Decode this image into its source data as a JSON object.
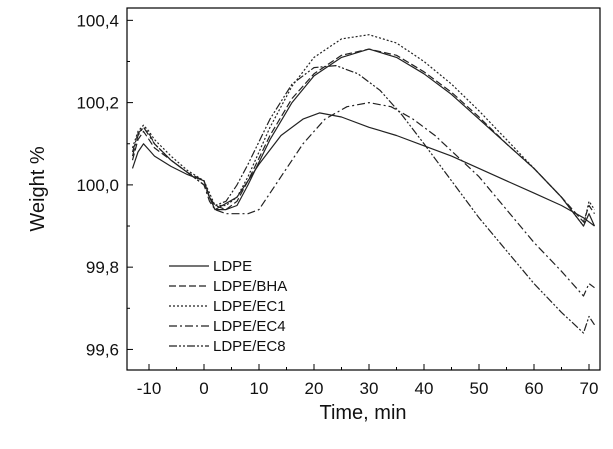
{
  "chart_data": {
    "type": "line",
    "xlabel": "Time, min",
    "ylabel": "Weight %",
    "xlim": [
      -14,
      72
    ],
    "ylim": [
      99.55,
      100.43
    ],
    "x_ticks": [
      -10,
      0,
      10,
      20,
      30,
      40,
      50,
      60,
      70
    ],
    "x_tick_labels": [
      "-10",
      "0",
      "10",
      "20",
      "30",
      "40",
      "50",
      "60",
      "70"
    ],
    "y_ticks": [
      99.6,
      99.8,
      100.0,
      100.2,
      100.4
    ],
    "y_tick_labels": [
      "99,6",
      "99,8",
      "100,0",
      "100,2",
      "100,4"
    ],
    "grid": false,
    "legend_position": "bottom-left",
    "series": [
      {
        "name": "LDPE",
        "dash": "",
        "points": [
          [
            -13,
            100.04
          ],
          [
            -12,
            100.08
          ],
          [
            -11,
            100.1
          ],
          [
            -10,
            100.085
          ],
          [
            -9,
            100.07
          ],
          [
            -6,
            100.045
          ],
          [
            -3,
            100.025
          ],
          [
            0,
            100.01
          ],
          [
            1,
            99.97
          ],
          [
            2,
            99.94
          ],
          [
            4,
            99.94
          ],
          [
            6,
            99.95
          ],
          [
            8,
            100.0
          ],
          [
            12,
            100.11
          ],
          [
            16,
            100.2
          ],
          [
            20,
            100.265
          ],
          [
            25,
            100.31
          ],
          [
            30,
            100.33
          ],
          [
            35,
            100.31
          ],
          [
            40,
            100.27
          ],
          [
            45,
            100.22
          ],
          [
            50,
            100.16
          ],
          [
            55,
            100.1
          ],
          [
            60,
            100.04
          ],
          [
            65,
            99.97
          ],
          [
            69,
            99.9
          ],
          [
            70,
            99.93
          ],
          [
            71,
            99.9
          ]
        ]
      },
      {
        "name": "LDPE/BHA",
        "dash": "7,3",
        "points": [
          [
            -13,
            100.06
          ],
          [
            -12,
            100.11
          ],
          [
            -11,
            100.13
          ],
          [
            -10,
            100.11
          ],
          [
            -9,
            100.09
          ],
          [
            -6,
            100.06
          ],
          [
            -3,
            100.03
          ],
          [
            0,
            100.01
          ],
          [
            1,
            99.97
          ],
          [
            2,
            99.95
          ],
          [
            4,
            99.94
          ],
          [
            6,
            99.96
          ],
          [
            8,
            100.01
          ],
          [
            12,
            100.12
          ],
          [
            16,
            100.21
          ],
          [
            20,
            100.27
          ],
          [
            25,
            100.315
          ],
          [
            30,
            100.33
          ],
          [
            35,
            100.315
          ],
          [
            40,
            100.275
          ],
          [
            45,
            100.225
          ],
          [
            50,
            100.165
          ],
          [
            55,
            100.1
          ],
          [
            60,
            100.04
          ],
          [
            65,
            99.97
          ],
          [
            69,
            99.91
          ],
          [
            70,
            99.95
          ],
          [
            71,
            99.93
          ]
        ]
      },
      {
        "name": "LDPE/EC1",
        "dash": "2,2",
        "points": [
          [
            -13,
            100.09
          ],
          [
            -12,
            100.13
          ],
          [
            -11,
            100.145
          ],
          [
            -10,
            100.13
          ],
          [
            -9,
            100.11
          ],
          [
            -6,
            100.07
          ],
          [
            -3,
            100.035
          ],
          [
            0,
            100.01
          ],
          [
            1,
            99.98
          ],
          [
            2,
            99.95
          ],
          [
            4,
            99.95
          ],
          [
            6,
            99.97
          ],
          [
            8,
            100.02
          ],
          [
            12,
            100.14
          ],
          [
            16,
            100.24
          ],
          [
            20,
            100.31
          ],
          [
            25,
            100.355
          ],
          [
            30,
            100.365
          ],
          [
            35,
            100.345
          ],
          [
            40,
            100.3
          ],
          [
            45,
            100.245
          ],
          [
            50,
            100.18
          ],
          [
            55,
            100.11
          ],
          [
            60,
            100.04
          ],
          [
            65,
            99.97
          ],
          [
            69,
            99.9
          ],
          [
            70,
            99.96
          ],
          [
            71,
            99.94
          ]
        ]
      },
      {
        "name": "LDPE/EC4",
        "dash": "8,3,2,3",
        "points": [
          [
            -13,
            100.07
          ],
          [
            -12,
            100.12
          ],
          [
            -11,
            100.14
          ],
          [
            -10,
            100.12
          ],
          [
            -9,
            100.1
          ],
          [
            -6,
            100.06
          ],
          [
            -3,
            100.03
          ],
          [
            0,
            100.0
          ],
          [
            1,
            99.96
          ],
          [
            2,
            99.94
          ],
          [
            4,
            99.93
          ],
          [
            6,
            99.93
          ],
          [
            8,
            99.93
          ],
          [
            10,
            99.94
          ],
          [
            14,
            100.02
          ],
          [
            18,
            100.1
          ],
          [
            22,
            100.16
          ],
          [
            26,
            100.19
          ],
          [
            30,
            100.2
          ],
          [
            34,
            100.19
          ],
          [
            38,
            100.16
          ],
          [
            42,
            100.12
          ],
          [
            46,
            100.07
          ],
          [
            50,
            100.02
          ],
          [
            55,
            99.94
          ],
          [
            60,
            99.86
          ],
          [
            65,
            99.79
          ],
          [
            69,
            99.73
          ],
          [
            70,
            99.76
          ],
          [
            71,
            99.75
          ]
        ]
      },
      {
        "name": "LDPE/EC8",
        "dash": "8,2,2,2,2,2",
        "points": [
          [
            -13,
            100.08
          ],
          [
            -12,
            100.125
          ],
          [
            -11,
            100.14
          ],
          [
            -10,
            100.125
          ],
          [
            -9,
            100.1
          ],
          [
            -6,
            100.06
          ],
          [
            -3,
            100.03
          ],
          [
            0,
            100.0
          ],
          [
            1,
            99.97
          ],
          [
            2,
            99.95
          ],
          [
            4,
            99.96
          ],
          [
            6,
            100.0
          ],
          [
            8,
            100.05
          ],
          [
            12,
            100.16
          ],
          [
            16,
            100.245
          ],
          [
            20,
            100.285
          ],
          [
            24,
            100.29
          ],
          [
            28,
            100.27
          ],
          [
            32,
            100.23
          ],
          [
            36,
            100.17
          ],
          [
            40,
            100.1
          ],
          [
            45,
            100.01
          ],
          [
            50,
            99.92
          ],
          [
            55,
            99.84
          ],
          [
            60,
            99.76
          ],
          [
            65,
            99.69
          ],
          [
            69,
            99.64
          ],
          [
            70,
            99.68
          ],
          [
            71,
            99.66
          ]
        ]
      },
      {
        "name": "",
        "dash": "",
        "points": [
          [
            2,
            99.94
          ],
          [
            6,
            99.97
          ],
          [
            10,
            100.05
          ],
          [
            14,
            100.12
          ],
          [
            18,
            100.16
          ],
          [
            21,
            100.175
          ],
          [
            25,
            100.165
          ],
          [
            30,
            100.14
          ],
          [
            35,
            100.12
          ],
          [
            40,
            100.095
          ],
          [
            45,
            100.07
          ],
          [
            50,
            100.04
          ],
          [
            55,
            100.01
          ],
          [
            60,
            99.98
          ],
          [
            65,
            99.95
          ],
          [
            69,
            99.92
          ],
          [
            71,
            99.9
          ]
        ]
      }
    ]
  }
}
